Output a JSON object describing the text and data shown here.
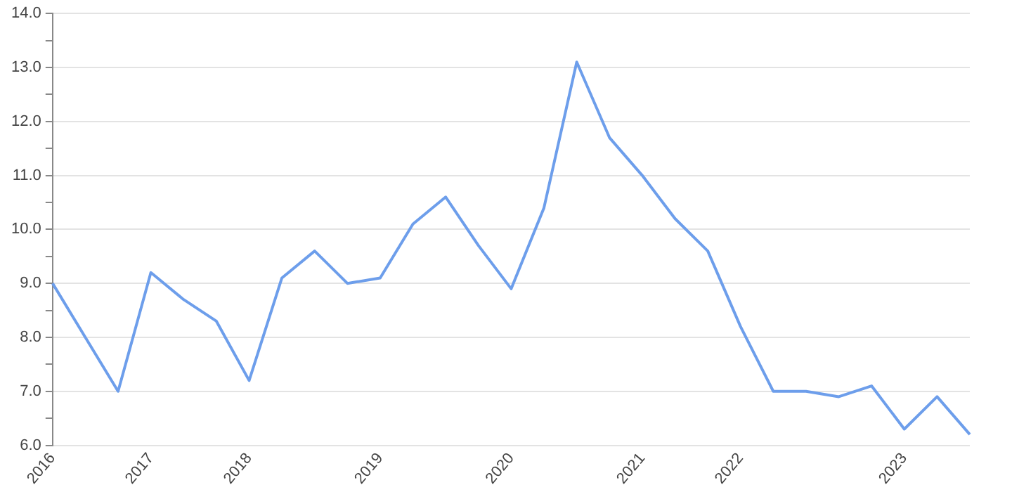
{
  "chart_data": {
    "type": "line",
    "categories": [
      "2016",
      null,
      null,
      "2017",
      null,
      null,
      "2018",
      null,
      null,
      null,
      "2019",
      null,
      null,
      null,
      "2020",
      null,
      null,
      null,
      "2021",
      null,
      null,
      "2022",
      null,
      null,
      null,
      null,
      "2023",
      null,
      null
    ],
    "series": [
      {
        "color": "#6d9eeb",
        "values": [
          9.0,
          8.0,
          7.0,
          9.2,
          8.7,
          8.3,
          7.2,
          9.1,
          9.6,
          9.0,
          9.1,
          10.1,
          10.6,
          9.7,
          8.9,
          10.4,
          13.1,
          11.7,
          11.0,
          10.2,
          9.6,
          8.2,
          7.0,
          7.0,
          6.9,
          7.1,
          6.3,
          6.9,
          6.2
        ]
      }
    ],
    "ylim": [
      6.0,
      14.0
    ],
    "yticks": [
      {
        "value": 6,
        "label": "6.0"
      },
      {
        "value": 6.5,
        "label": null
      },
      {
        "value": 7,
        "label": "7.0"
      },
      {
        "value": 7.5,
        "label": null
      },
      {
        "value": 8,
        "label": "8.0"
      },
      {
        "value": 8.5,
        "label": null
      },
      {
        "value": 9,
        "label": "9.0"
      },
      {
        "value": 9.5,
        "label": null
      },
      {
        "value": 10,
        "label": "10.0"
      },
      {
        "value": 10.5,
        "label": null
      },
      {
        "value": 11,
        "label": "11.0"
      },
      {
        "value": 11.5,
        "label": null
      },
      {
        "value": 12,
        "label": "12.0"
      },
      {
        "value": 12.5,
        "label": null
      },
      {
        "value": 13,
        "label": "13.0"
      },
      {
        "value": 13.5,
        "label": null
      },
      {
        "value": 14,
        "label": "14.0"
      }
    ],
    "grid": "y",
    "legend": false,
    "marker": "none",
    "line_style": "solid"
  }
}
